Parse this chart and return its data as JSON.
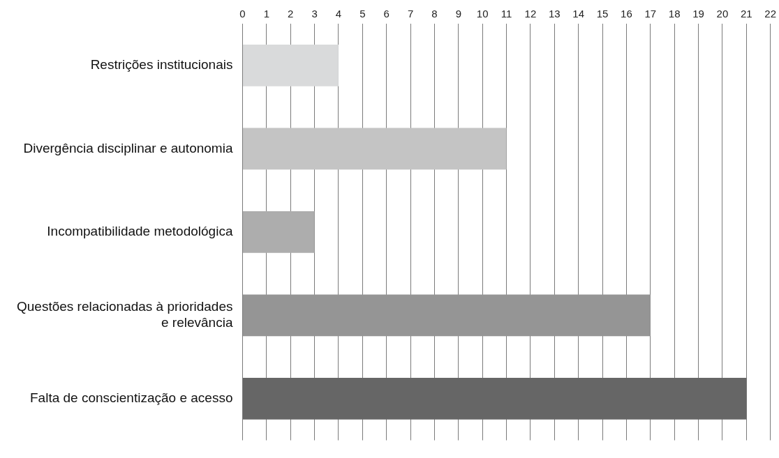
{
  "chart_data": {
    "type": "bar",
    "orientation": "horizontal",
    "categories": [
      "Restrições institucionais",
      "Divergência disciplinar e autonomia",
      "Incompatibilidade metodológica",
      "Questões relacionadas à prioridades e relevância",
      "Falta de conscientização e acesso"
    ],
    "values": [
      4,
      11,
      3,
      17,
      21
    ],
    "colors": [
      "#d9dadb",
      "#c4c4c4",
      "#adadad",
      "#959595",
      "#666666"
    ],
    "xlim": [
      0,
      22
    ],
    "xticks": [
      0,
      1,
      2,
      3,
      4,
      5,
      6,
      7,
      8,
      9,
      10,
      11,
      12,
      13,
      14,
      15,
      16,
      17,
      18,
      19,
      20,
      21,
      22
    ],
    "grid": "x",
    "legend": false
  }
}
